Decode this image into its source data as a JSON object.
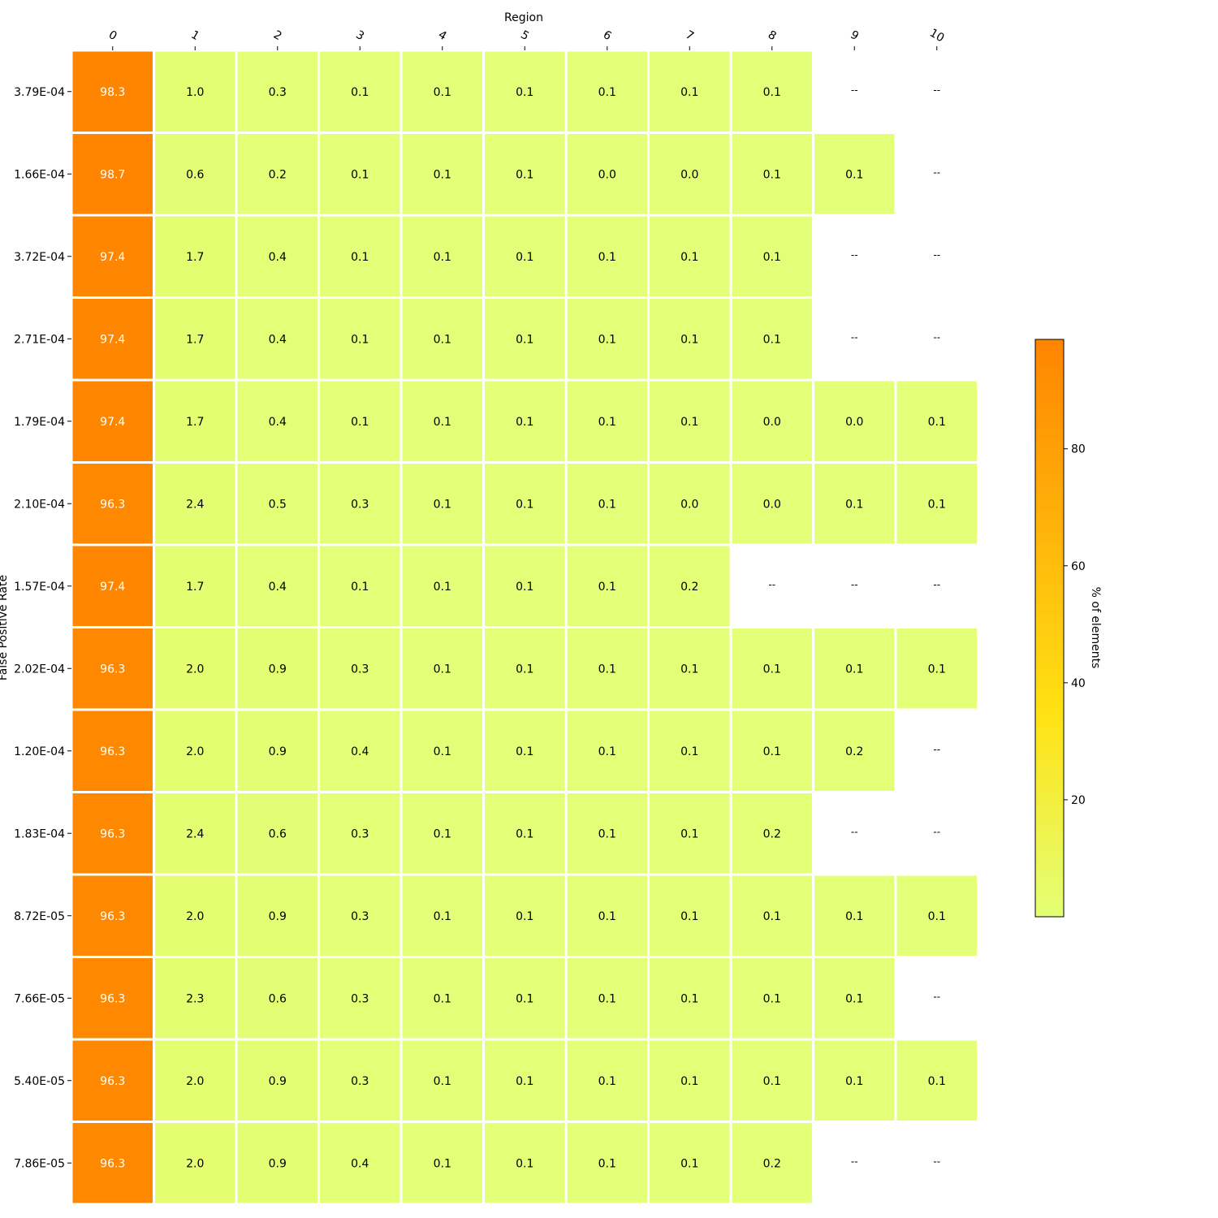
{
  "chart_data": {
    "type": "heatmap",
    "title": "",
    "xlabel": "Region",
    "ylabel": "False Positive Rate",
    "x": [
      "0",
      "1",
      "2",
      "3",
      "4",
      "5",
      "6",
      "7",
      "8",
      "9",
      "10"
    ],
    "y": [
      "3.79E-04",
      "1.66E-04",
      "3.72E-04",
      "2.71E-04",
      "1.79E-04",
      "2.10E-04",
      "1.57E-04",
      "2.02E-04",
      "1.20E-04",
      "1.83E-04",
      "8.72E-05",
      "7.66E-05",
      "5.40E-05",
      "7.86E-05"
    ],
    "values": [
      [
        98.3,
        1.0,
        0.3,
        0.1,
        0.1,
        0.1,
        0.1,
        0.1,
        0.1,
        null,
        null
      ],
      [
        98.7,
        0.6,
        0.2,
        0.1,
        0.1,
        0.1,
        0.0,
        0.0,
        0.1,
        0.1,
        null
      ],
      [
        97.4,
        1.7,
        0.4,
        0.1,
        0.1,
        0.1,
        0.1,
        0.1,
        0.1,
        null,
        null
      ],
      [
        97.4,
        1.7,
        0.4,
        0.1,
        0.1,
        0.1,
        0.1,
        0.1,
        0.1,
        null,
        null
      ],
      [
        97.4,
        1.7,
        0.4,
        0.1,
        0.1,
        0.1,
        0.1,
        0.1,
        0.0,
        0.0,
        0.1
      ],
      [
        96.3,
        2.4,
        0.5,
        0.3,
        0.1,
        0.1,
        0.1,
        0.0,
        0.0,
        0.1,
        0.1
      ],
      [
        97.4,
        1.7,
        0.4,
        0.1,
        0.1,
        0.1,
        0.1,
        0.2,
        null,
        null,
        null
      ],
      [
        96.3,
        2.0,
        0.9,
        0.3,
        0.1,
        0.1,
        0.1,
        0.1,
        0.1,
        0.1,
        0.1
      ],
      [
        96.3,
        2.0,
        0.9,
        0.4,
        0.1,
        0.1,
        0.1,
        0.1,
        0.1,
        0.2,
        null
      ],
      [
        96.3,
        2.4,
        0.6,
        0.3,
        0.1,
        0.1,
        0.1,
        0.1,
        0.2,
        null,
        null
      ],
      [
        96.3,
        2.0,
        0.9,
        0.3,
        0.1,
        0.1,
        0.1,
        0.1,
        0.1,
        0.1,
        0.1
      ],
      [
        96.3,
        2.3,
        0.6,
        0.3,
        0.1,
        0.1,
        0.1,
        0.1,
        0.1,
        0.1,
        null
      ],
      [
        96.3,
        2.0,
        0.9,
        0.3,
        0.1,
        0.1,
        0.1,
        0.1,
        0.1,
        0.1,
        0.1
      ],
      [
        96.3,
        2.0,
        0.9,
        0.4,
        0.1,
        0.1,
        0.1,
        0.1,
        0.2,
        null,
        null
      ]
    ],
    "missing_label": "--",
    "colorbar": {
      "label": "% of elements",
      "ticks": [
        20,
        40,
        60,
        80
      ],
      "range": [
        0.0,
        98.7
      ],
      "color_low": "#e3ff77",
      "color_mid": "#ffe214",
      "color_high": "#ff8400"
    },
    "x_axis_position": "top",
    "grid": false,
    "legend": "colorbar-right"
  }
}
